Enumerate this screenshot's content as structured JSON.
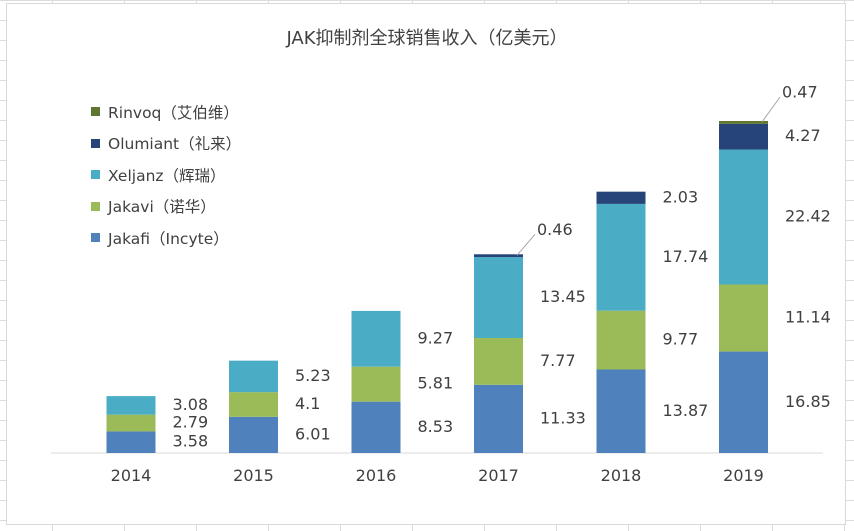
{
  "chart_data": {
    "type": "bar",
    "stacked": true,
    "title": "JAK抑制剂全球销售收入（亿美元）",
    "categories": [
      "2014",
      "2015",
      "2016",
      "2017",
      "2018",
      "2019"
    ],
    "series": [
      {
        "name": "Jakafi（Incyte）",
        "color": "#4f81bd",
        "values": [
          3.58,
          6.01,
          8.53,
          11.33,
          13.87,
          16.85
        ]
      },
      {
        "name": "Jakavi（诺华）",
        "color": "#9bbb59",
        "values": [
          2.79,
          4.1,
          5.81,
          7.77,
          9.77,
          11.14
        ]
      },
      {
        "name": "Xeljanz（辉瑞）",
        "color": "#4bacc6",
        "values": [
          3.08,
          5.23,
          9.27,
          13.45,
          17.74,
          22.42
        ]
      },
      {
        "name": "Olumiant（礼来）",
        "color": "#264478",
        "values": [
          null,
          null,
          null,
          0.46,
          2.03,
          4.27
        ]
      },
      {
        "name": "Rinvoq（艾伯维）",
        "color": "#5f7530",
        "values": [
          null,
          null,
          null,
          null,
          null,
          0.47
        ]
      }
    ],
    "legend_position": "top-left",
    "legend_order": [
      "Rinvoq（艾伯维）",
      "Olumiant（礼来）",
      "Xeljanz（辉瑞）",
      "Jakavi（诺华）",
      "Jakafi（Incyte）"
    ],
    "ylim": [
      0,
      56
    ],
    "grid": false
  }
}
